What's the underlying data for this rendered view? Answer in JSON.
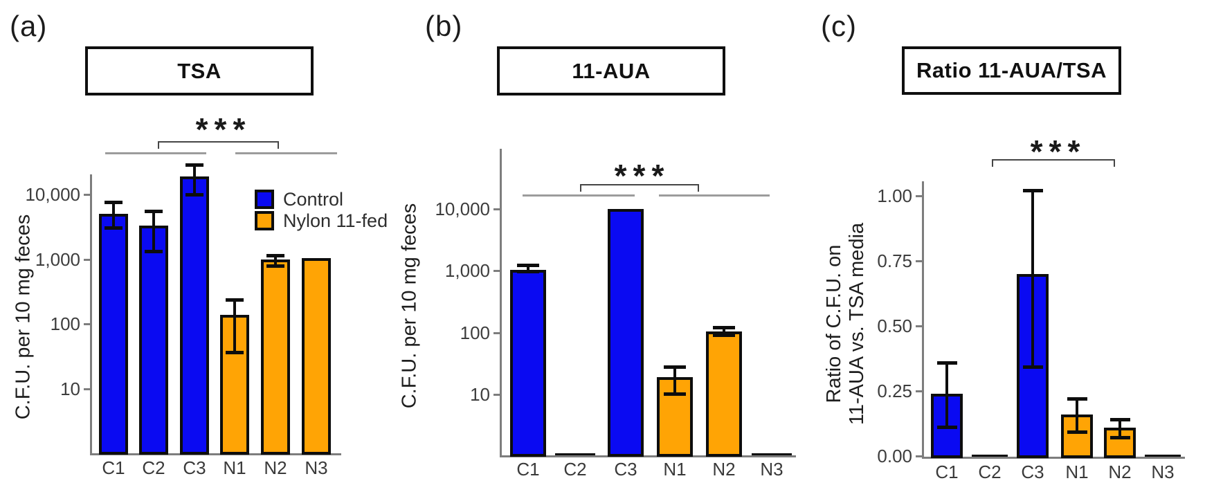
{
  "figure": {
    "background": "#ffffff",
    "panels": [
      {
        "id": "a",
        "label": "(a)",
        "title": "TSA",
        "ylabel": "C.F.U. per 10 mg feces",
        "ylabel_lines": [
          "C.F.U. per 10 mg feces"
        ],
        "significance": "***"
      },
      {
        "id": "b",
        "label": "(b)",
        "title": "11-AUA",
        "ylabel": "C.F.U. per 10 mg feces",
        "ylabel_lines": [
          "C.F.U. per 10 mg feces"
        ],
        "significance": "***"
      },
      {
        "id": "c",
        "label": "(c)",
        "title": "Ratio 11-AUA/TSA",
        "ylabel": "Ratio of C.F.U. on 11-AUA vs. TSA media",
        "ylabel_lines": [
          "Ratio of C.F.U. on",
          "11-AUA vs. TSA media"
        ],
        "significance": "***"
      }
    ],
    "legend": {
      "position": "inside panel (a), upper right",
      "items": [
        {
          "label": "Control",
          "color": "#0a0af2"
        },
        {
          "label": "Nylon 11-fed",
          "color": "#ffa405"
        }
      ]
    }
  },
  "colors": {
    "control_bar": "#0a0af2",
    "nylon_bar": "#ffa405",
    "bar_border": "#0d0d0d",
    "axis": "#7d7d7d",
    "group_underline": "#9c9c9c",
    "text": "#2e2e2e"
  },
  "chart_data": [
    {
      "type": "bar",
      "panel": "a",
      "title": "TSA",
      "xlabel": "",
      "ylabel": "C.F.U. per 10 mg feces",
      "yscale": "log",
      "ylim": [
        1,
        30000
      ],
      "yticks": [
        10000,
        1000,
        100,
        10
      ],
      "ytick_labels": [
        "10,000",
        "1,000",
        "100",
        "10"
      ],
      "categories": [
        "C1",
        "C2",
        "C3",
        "N1",
        "N2",
        "N3"
      ],
      "groups": [
        "Control",
        "Control",
        "Control",
        "Nylon 11-fed",
        "Nylon 11-fed",
        "Nylon 11-fed"
      ],
      "values": [
        5000,
        3300,
        19000,
        140,
        1000,
        1050
      ],
      "err_lo": [
        3000,
        1300,
        9800,
        36,
        780,
        null
      ],
      "err_hi": [
        7600,
        5500,
        29000,
        240,
        1150,
        null
      ],
      "significance": {
        "label": "***",
        "comparison": "Control group vs Nylon 11-fed group"
      },
      "group_underlines": true,
      "legend_position": "inside top-right",
      "grid": false
    },
    {
      "type": "bar",
      "panel": "b",
      "title": "11-AUA",
      "xlabel": "",
      "ylabel": "C.F.U. per 10 mg feces",
      "yscale": "log",
      "ylim": [
        1,
        20000
      ],
      "yticks": [
        10000,
        1000,
        100,
        10
      ],
      "ytick_labels": [
        "10,000",
        "1,000",
        "100",
        "10"
      ],
      "categories": [
        "C1",
        "C2",
        "C3",
        "N1",
        "N2",
        "N3"
      ],
      "groups": [
        "Control",
        "Control",
        "Control",
        "Nylon 11-fed",
        "Nylon 11-fed",
        "Nylon 11-fed"
      ],
      "values": [
        1050,
        0,
        10000,
        19,
        105,
        0
      ],
      "err_lo": [
        950,
        null,
        null,
        10,
        90,
        null
      ],
      "err_hi": [
        1250,
        null,
        null,
        28,
        122,
        null
      ],
      "significance": {
        "label": "***",
        "comparison": "Control group vs Nylon 11-fed group"
      },
      "group_underlines": true,
      "grid": false
    },
    {
      "type": "bar",
      "panel": "c",
      "title": "Ratio 11-AUA/TSA",
      "xlabel": "",
      "ylabel": "Ratio of C.F.U. on 11-AUA vs. TSA media",
      "yscale": "linear",
      "ylim": [
        0,
        1.05
      ],
      "yticks": [
        1.0,
        0.75,
        0.5,
        0.25,
        0.0
      ],
      "ytick_labels": [
        "1.00",
        "0.75",
        "0.50",
        "0.25",
        "0.00"
      ],
      "categories": [
        "C1",
        "C2",
        "C3",
        "N1",
        "N2",
        "N3"
      ],
      "groups": [
        "Control",
        "Control",
        "Control",
        "Nylon 11-fed",
        "Nylon 11-fed",
        "Nylon 11-fed"
      ],
      "values": [
        0.24,
        0,
        0.7,
        0.16,
        0.11,
        0
      ],
      "err_lo": [
        0.11,
        null,
        0.34,
        0.09,
        0.07,
        null
      ],
      "err_hi": [
        0.36,
        null,
        1.02,
        0.22,
        0.14,
        null
      ],
      "significance": {
        "label": "***",
        "comparison": "C2 vs N2 (bracket spans C2 to N2)"
      },
      "group_underlines": false,
      "grid": false
    }
  ]
}
